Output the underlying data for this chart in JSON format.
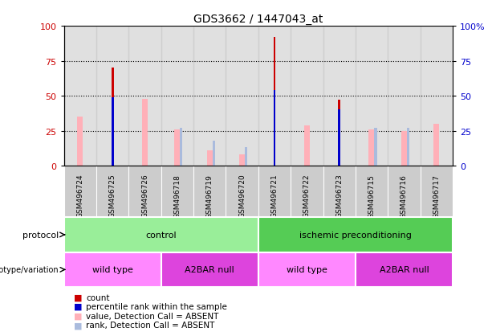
{
  "title": "GDS3662 / 1447043_at",
  "samples": [
    "GSM496724",
    "GSM496725",
    "GSM496726",
    "GSM496718",
    "GSM496719",
    "GSM496720",
    "GSM496721",
    "GSM496722",
    "GSM496723",
    "GSM496715",
    "GSM496716",
    "GSM496717"
  ],
  "count": [
    0,
    70,
    0,
    0,
    0,
    0,
    92,
    0,
    47,
    0,
    0,
    0
  ],
  "percentile_rank": [
    0,
    49,
    0,
    0,
    0,
    0,
    54,
    0,
    40,
    0,
    0,
    0
  ],
  "value_absent": [
    35,
    0,
    48,
    26,
    11,
    8,
    0,
    29,
    0,
    26,
    25,
    30
  ],
  "rank_absent": [
    0,
    0,
    0,
    27,
    18,
    13,
    0,
    0,
    0,
    27,
    27,
    0
  ],
  "protocol_groups": [
    {
      "label": "control",
      "start": 0,
      "end": 6,
      "color": "#99EE99"
    },
    {
      "label": "ischemic preconditioning",
      "start": 6,
      "end": 12,
      "color": "#55CC55"
    }
  ],
  "genotype_groups": [
    {
      "label": "wild type",
      "start": 0,
      "end": 3,
      "color": "#FF88FF"
    },
    {
      "label": "A2BAR null",
      "start": 3,
      "end": 6,
      "color": "#DD44DD"
    },
    {
      "label": "wild type",
      "start": 6,
      "end": 9,
      "color": "#FF88FF"
    },
    {
      "label": "A2BAR null",
      "start": 9,
      "end": 12,
      "color": "#DD44DD"
    }
  ],
  "ylim": [
    0,
    100
  ],
  "count_color": "#CC0000",
  "rank_color": "#0000CC",
  "value_absent_color": "#FFB0B8",
  "rank_absent_color": "#AABBDD",
  "bg_color": "#CCCCCC",
  "left_ylabel_color": "#CC0000",
  "right_ylabel_color": "#0000CC",
  "legend_items": [
    {
      "color": "#CC0000",
      "label": "count"
    },
    {
      "color": "#0000CC",
      "label": "percentile rank within the sample"
    },
    {
      "color": "#FFB0B8",
      "label": "value, Detection Call = ABSENT"
    },
    {
      "color": "#AABBDD",
      "label": "rank, Detection Call = ABSENT"
    }
  ]
}
